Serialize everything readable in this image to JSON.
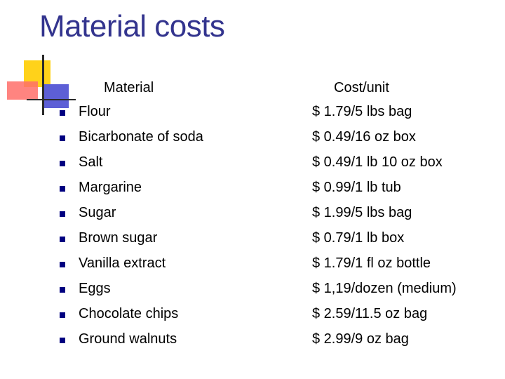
{
  "slide": {
    "title": "Material costs"
  },
  "table": {
    "headers": {
      "material": "Material",
      "cost": "Cost/unit"
    },
    "rows": [
      {
        "material": "Flour",
        "cost": "$ 1.79/5 lbs bag"
      },
      {
        "material": "Bicarbonate of soda",
        "cost": "$ 0.49/16 oz box"
      },
      {
        "material": "Salt",
        "cost": "$ 0.49/1 lb 10 oz box"
      },
      {
        "material": "Margarine",
        "cost": "$ 0.99/1 lb tub"
      },
      {
        "material": "Sugar",
        "cost": "$ 1.99/5 lbs bag"
      },
      {
        "material": "Brown sugar",
        "cost": "$ 0.79/1 lb box"
      },
      {
        "material": "Vanilla extract",
        "cost": "$ 1.79/1 fl oz bottle"
      },
      {
        "material": "Eggs",
        "cost": "$ 1,19/dozen (medium)"
      },
      {
        "material": "Chocolate chips",
        "cost": "$ 2.59/11.5 oz bag"
      },
      {
        "material": "Ground walnuts",
        "cost": "$ 2.99/9 oz bag"
      }
    ]
  },
  "colors": {
    "title": "#33348e",
    "bullet": "#000080",
    "logo_yellow": "#ffd21a",
    "logo_red": "#ff6f6a",
    "logo_blue": "#5d5fd6"
  }
}
